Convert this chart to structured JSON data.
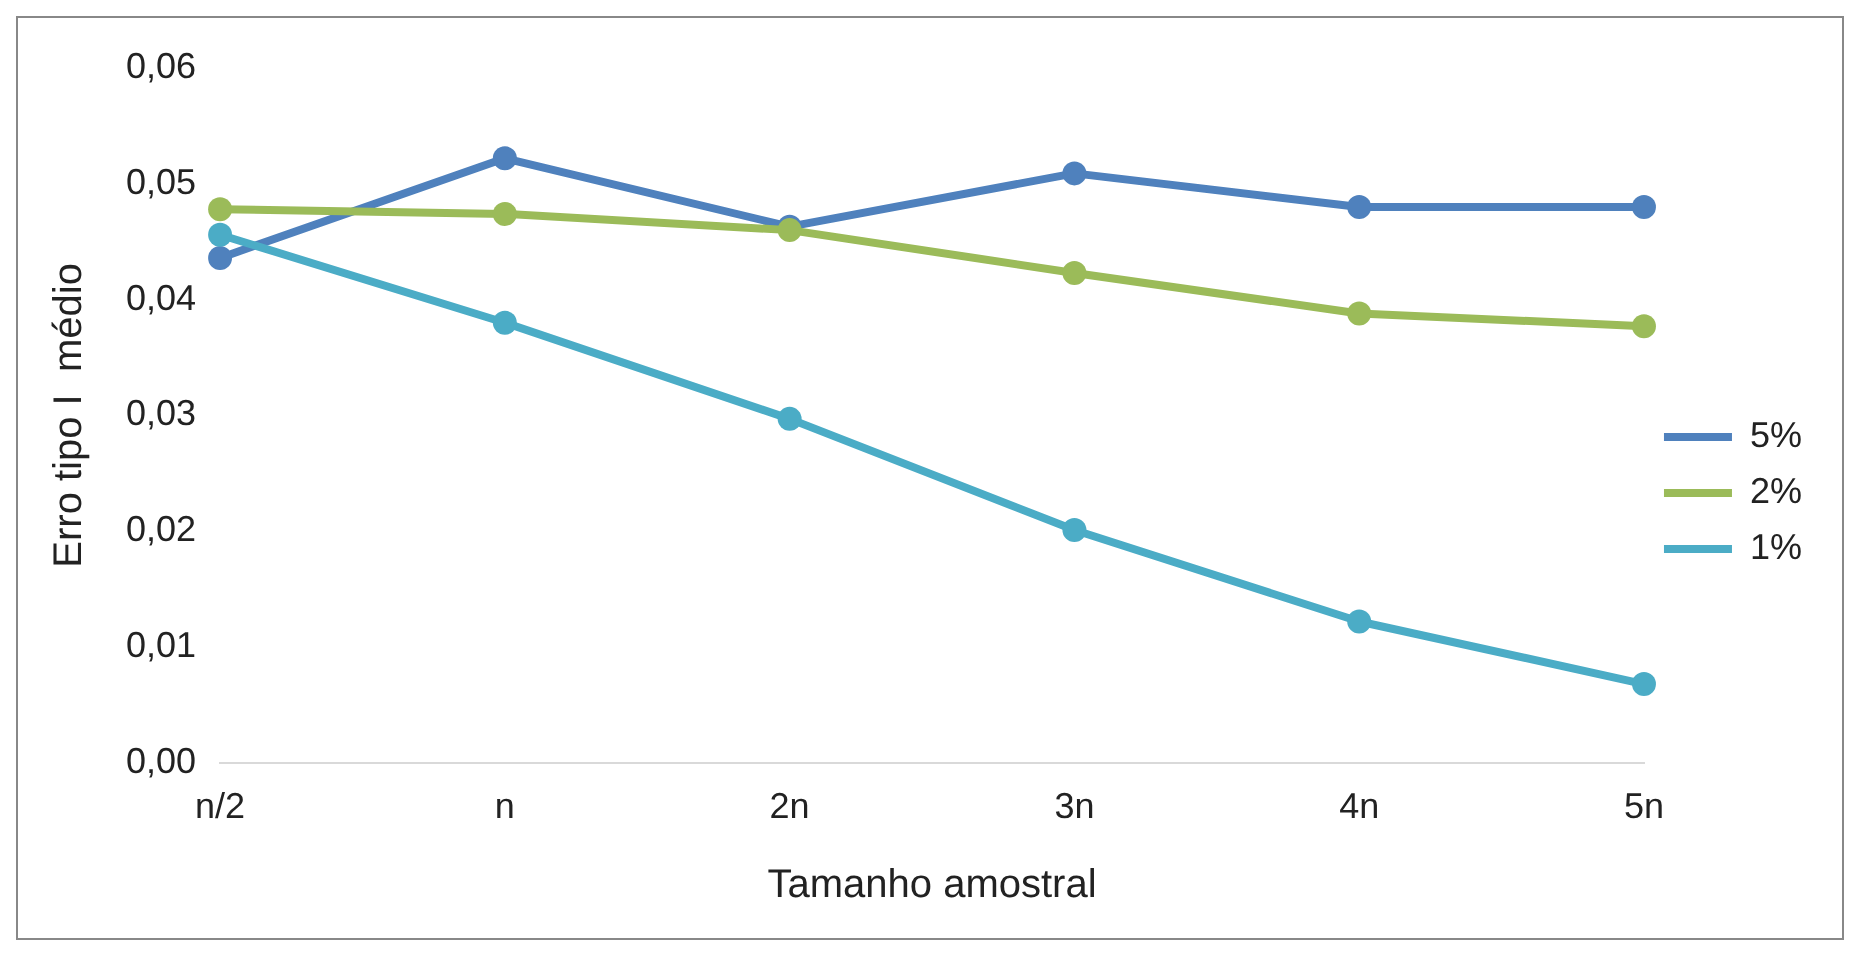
{
  "chart_data": {
    "type": "line",
    "xlabel": "Tamanho amostral",
    "ylabel": "Erro tipo I  médio",
    "categories": [
      "n/2",
      "n",
      "2n",
      "3n",
      "4n",
      "5n"
    ],
    "series": [
      {
        "name": "5%",
        "color": "#4f81bd",
        "values": [
          0.0436,
          0.0522,
          0.0463,
          0.0509,
          0.048,
          0.048
        ]
      },
      {
        "name": "2%",
        "color": "#9bbb59",
        "values": [
          0.0478,
          0.0474,
          0.046,
          0.0423,
          0.0388,
          0.0377
        ]
      },
      {
        "name": "1%",
        "color": "#4bacc6",
        "values": [
          0.0456,
          0.038,
          0.0297,
          0.0201,
          0.0122,
          0.0068
        ]
      }
    ],
    "ylim": [
      0,
      0.06
    ],
    "yticks": [
      {
        "value": 0,
        "label": "0,00"
      },
      {
        "value": 0.01,
        "label": "0,01"
      },
      {
        "value": 0.02,
        "label": "0,02"
      },
      {
        "value": 0.03,
        "label": "0,03"
      },
      {
        "value": 0.04,
        "label": "0,04"
      },
      {
        "value": 0.05,
        "label": "0,05"
      },
      {
        "value": 0.06,
        "label": "0,06"
      }
    ],
    "grid": false,
    "legend": "right",
    "marker": "circle",
    "line_style": "solid"
  }
}
